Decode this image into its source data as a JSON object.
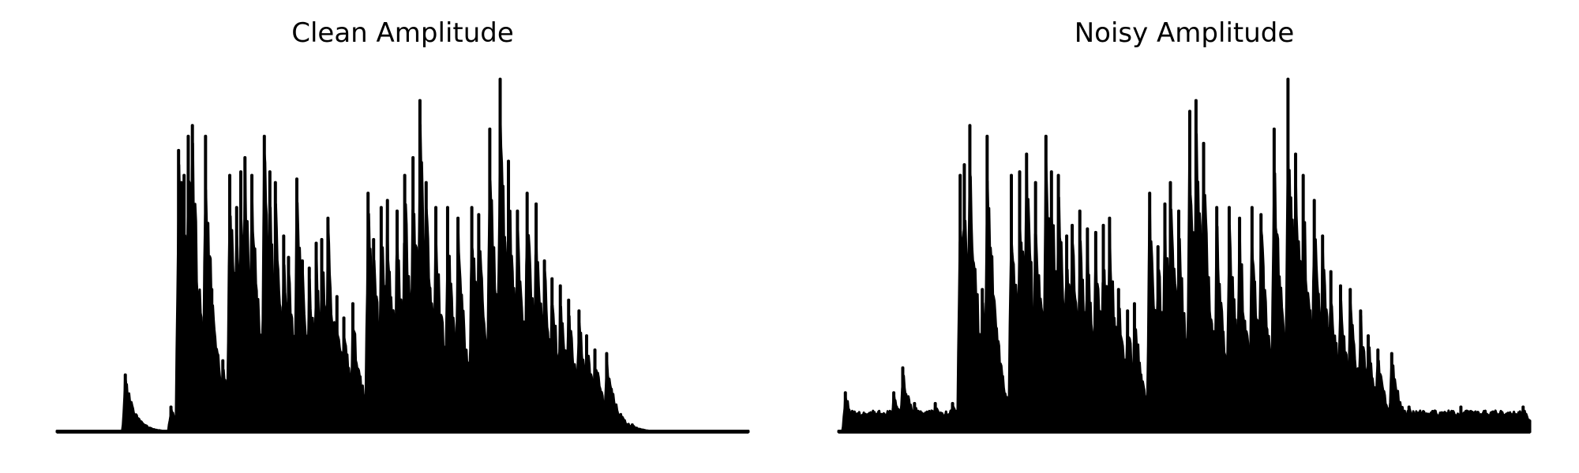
{
  "chart_data": [
    {
      "type": "area",
      "title": "Clean Amplitude",
      "xlabel": "",
      "ylabel": "",
      "axes_visible": false,
      "color": "#000000",
      "xlim": [
        0,
        1.0
      ],
      "ylim": [
        0,
        1.0
      ],
      "noise_floor": 0.0,
      "onsets": [
        [
          0.099,
          0.16
        ],
        [
          0.104,
          0.02
        ],
        [
          0.118,
          0.02
        ],
        [
          0.165,
          0.07
        ],
        [
          0.176,
          0.79
        ],
        [
          0.18,
          0.7
        ],
        [
          0.184,
          0.72
        ],
        [
          0.19,
          0.83
        ],
        [
          0.196,
          0.86
        ],
        [
          0.208,
          0.08
        ],
        [
          0.215,
          0.83
        ],
        [
          0.224,
          0.4
        ],
        [
          0.24,
          0.2
        ],
        [
          0.25,
          0.72
        ],
        [
          0.26,
          0.63
        ],
        [
          0.266,
          0.73
        ],
        [
          0.272,
          0.77
        ],
        [
          0.282,
          0.72
        ],
        [
          0.3,
          0.83
        ],
        [
          0.308,
          0.73
        ],
        [
          0.316,
          0.7
        ],
        [
          0.328,
          0.55
        ],
        [
          0.335,
          0.49
        ],
        [
          0.347,
          0.71
        ],
        [
          0.355,
          0.48
        ],
        [
          0.365,
          0.46
        ],
        [
          0.375,
          0.53
        ],
        [
          0.383,
          0.54
        ],
        [
          0.392,
          0.6
        ],
        [
          0.405,
          0.38
        ],
        [
          0.415,
          0.32
        ],
        [
          0.428,
          0.36
        ],
        [
          0.45,
          0.67
        ],
        [
          0.458,
          0.54
        ],
        [
          0.469,
          0.63
        ],
        [
          0.478,
          0.65
        ],
        [
          0.492,
          0.62
        ],
        [
          0.503,
          0.72
        ],
        [
          0.515,
          0.77
        ],
        [
          0.525,
          0.93
        ],
        [
          0.534,
          0.7
        ],
        [
          0.548,
          0.63
        ],
        [
          0.565,
          0.63
        ],
        [
          0.58,
          0.6
        ],
        [
          0.6,
          0.63
        ],
        [
          0.61,
          0.61
        ],
        [
          0.626,
          0.85
        ],
        [
          0.641,
          0.99
        ],
        [
          0.653,
          0.76
        ],
        [
          0.666,
          0.62
        ],
        [
          0.68,
          0.67
        ],
        [
          0.693,
          0.64
        ],
        [
          0.705,
          0.48
        ],
        [
          0.716,
          0.43
        ],
        [
          0.728,
          0.41
        ],
        [
          0.74,
          0.37
        ],
        [
          0.755,
          0.34
        ],
        [
          0.766,
          0.27
        ],
        [
          0.778,
          0.23
        ],
        [
          0.795,
          0.22
        ],
        [
          0.832,
          0.02
        ]
      ]
    },
    {
      "type": "area",
      "title": "Noisy Amplitude",
      "xlabel": "",
      "ylabel": "",
      "axes_visible": false,
      "color": "#000000",
      "xlim": [
        0,
        1.0
      ],
      "ylim": [
        0,
        1.0
      ],
      "noise_floor": 0.06,
      "onsets": [
        [
          0.01,
          0.11
        ],
        [
          0.08,
          0.11
        ],
        [
          0.093,
          0.18
        ],
        [
          0.11,
          0.08
        ],
        [
          0.14,
          0.08
        ],
        [
          0.165,
          0.08
        ],
        [
          0.176,
          0.72
        ],
        [
          0.182,
          0.75
        ],
        [
          0.19,
          0.86
        ],
        [
          0.208,
          0.4
        ],
        [
          0.215,
          0.83
        ],
        [
          0.23,
          0.2
        ],
        [
          0.25,
          0.72
        ],
        [
          0.262,
          0.73
        ],
        [
          0.272,
          0.78
        ],
        [
          0.285,
          0.7
        ],
        [
          0.3,
          0.83
        ],
        [
          0.308,
          0.73
        ],
        [
          0.318,
          0.72
        ],
        [
          0.33,
          0.55
        ],
        [
          0.338,
          0.58
        ],
        [
          0.349,
          0.62
        ],
        [
          0.36,
          0.57
        ],
        [
          0.372,
          0.56
        ],
        [
          0.383,
          0.58
        ],
        [
          0.392,
          0.6
        ],
        [
          0.405,
          0.4
        ],
        [
          0.418,
          0.34
        ],
        [
          0.428,
          0.36
        ],
        [
          0.45,
          0.67
        ],
        [
          0.462,
          0.52
        ],
        [
          0.472,
          0.64
        ],
        [
          0.48,
          0.7
        ],
        [
          0.492,
          0.62
        ],
        [
          0.508,
          0.9
        ],
        [
          0.517,
          0.93
        ],
        [
          0.528,
          0.81
        ],
        [
          0.547,
          0.63
        ],
        [
          0.565,
          0.63
        ],
        [
          0.58,
          0.6
        ],
        [
          0.598,
          0.63
        ],
        [
          0.611,
          0.61
        ],
        [
          0.63,
          0.85
        ],
        [
          0.65,
          0.99
        ],
        [
          0.661,
          0.78
        ],
        [
          0.672,
          0.72
        ],
        [
          0.688,
          0.65
        ],
        [
          0.7,
          0.55
        ],
        [
          0.712,
          0.45
        ],
        [
          0.726,
          0.41
        ],
        [
          0.74,
          0.4
        ],
        [
          0.755,
          0.34
        ],
        [
          0.766,
          0.27
        ],
        [
          0.78,
          0.23
        ],
        [
          0.8,
          0.22
        ],
        [
          0.825,
          0.07
        ],
        [
          0.9,
          0.07
        ],
        [
          0.99,
          0.07
        ]
      ]
    }
  ]
}
